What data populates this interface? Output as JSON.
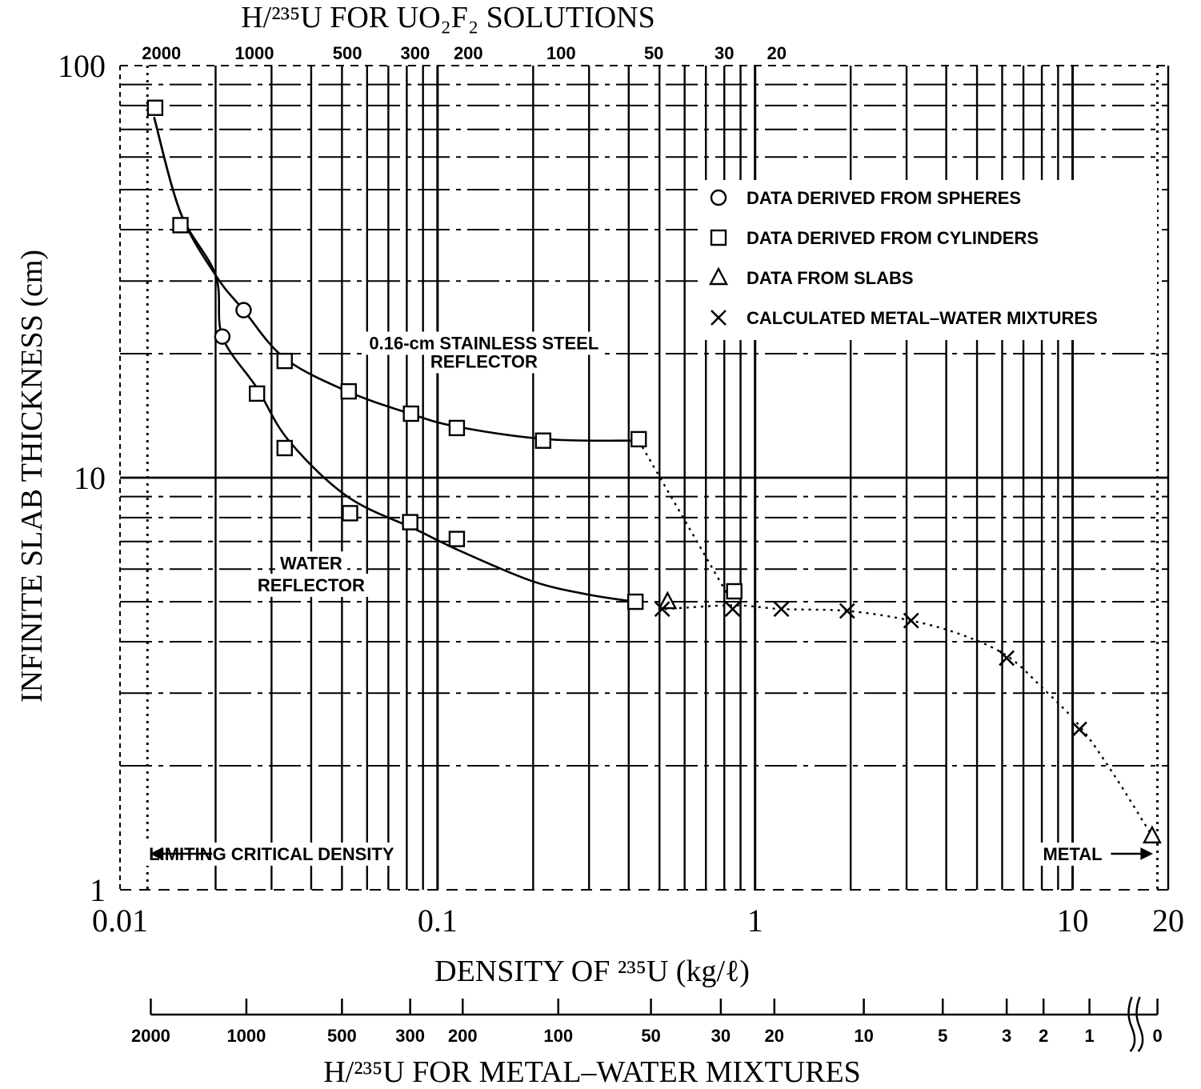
{
  "chart_data": {
    "type": "scatter",
    "title": "H/²³⁵U FOR UO₂F₂ SOLUTIONS",
    "xlabel": "DENSITY OF ²³⁵U (kg/ℓ)",
    "ylabel": "INFINITE SLAB THICKNESS (cm)",
    "bottom_axis_title": "H/²³⁵U FOR METAL–WATER MIXTURES",
    "x_scale": "log",
    "y_scale": "log",
    "xlim": [
      0.01,
      20
    ],
    "ylim": [
      1,
      100
    ],
    "grid": true,
    "legend_position": "top-right",
    "x_ticks": [
      {
        "v": 0.01,
        "label": "0.01"
      },
      {
        "v": 0.1,
        "label": "0.1"
      },
      {
        "v": 1,
        "label": "1"
      },
      {
        "v": 10,
        "label": "10"
      },
      {
        "v": 20,
        "label": "20"
      }
    ],
    "y_ticks": [
      {
        "v": 1,
        "label": "1"
      },
      {
        "v": 10,
        "label": "10"
      },
      {
        "v": 100,
        "label": "100"
      }
    ],
    "top_ticks": [
      {
        "label": "2000",
        "x": 0.0135
      },
      {
        "label": "1000",
        "x": 0.0265
      },
      {
        "label": "500",
        "x": 0.052
      },
      {
        "label": "300",
        "x": 0.085
      },
      {
        "label": "200",
        "x": 0.125
      },
      {
        "label": "100",
        "x": 0.245
      },
      {
        "label": "50",
        "x": 0.48
      },
      {
        "label": "30",
        "x": 0.8
      },
      {
        "label": "20",
        "x": 1.17
      }
    ],
    "bottom_ticks": [
      {
        "label": "2000",
        "x": 0.0125
      },
      {
        "label": "1000",
        "x": 0.025
      },
      {
        "label": "500",
        "x": 0.05
      },
      {
        "label": "300",
        "x": 0.082
      },
      {
        "label": "200",
        "x": 0.12
      },
      {
        "label": "100",
        "x": 0.24
      },
      {
        "label": "50",
        "x": 0.47
      },
      {
        "label": "30",
        "x": 0.78
      },
      {
        "label": "20",
        "x": 1.15
      },
      {
        "label": "10",
        "x": 2.2
      },
      {
        "label": "5",
        "x": 3.9
      },
      {
        "label": "3",
        "x": 6.2
      },
      {
        "label": "2",
        "x": 8.1
      },
      {
        "label": "1",
        "x": 11.3
      },
      {
        "label": "0",
        "x": 18.5
      }
    ],
    "series": [
      {
        "name": "DATA DERIVED FROM SPHERES",
        "marker": "circle",
        "points": [
          [
            0.0245,
            25.5
          ],
          [
            0.021,
            22.0
          ]
        ]
      },
      {
        "name": "DATA DERIVED FROM CYLINDERS",
        "marker": "square",
        "points": [
          [
            0.0129,
            79
          ],
          [
            0.0155,
            41
          ],
          [
            0.033,
            19.2
          ],
          [
            0.0525,
            16.2
          ],
          [
            0.0825,
            14.3
          ],
          [
            0.115,
            13.2
          ],
          [
            0.215,
            12.3
          ],
          [
            0.43,
            12.4
          ],
          [
            0.027,
            16.0
          ],
          [
            0.033,
            11.8
          ],
          [
            0.053,
            8.2
          ],
          [
            0.082,
            7.8
          ],
          [
            0.115,
            7.1
          ],
          [
            0.42,
            5.0
          ],
          [
            0.86,
            5.3
          ]
        ]
      },
      {
        "name": "DATA FROM SLABS",
        "marker": "triangle",
        "points": [
          [
            0.53,
            5.0
          ],
          [
            17.8,
            1.35
          ]
        ]
      },
      {
        "name": "CALCULATED METAL–WATER MIXTURES",
        "marker": "x",
        "points": [
          [
            0.51,
            4.8
          ],
          [
            0.85,
            4.8
          ],
          [
            1.21,
            4.8
          ],
          [
            1.95,
            4.75
          ],
          [
            3.1,
            4.5
          ],
          [
            6.2,
            3.65
          ],
          [
            10.5,
            2.45
          ]
        ]
      }
    ],
    "curves": [
      {
        "label": "0.16-cm STAINLESS STEEL REFLECTOR",
        "style": "solid",
        "points": [
          [
            0.0128,
            75
          ],
          [
            0.0155,
            44
          ],
          [
            0.02,
            31
          ],
          [
            0.0245,
            25.5
          ],
          [
            0.033,
            19.5
          ],
          [
            0.052,
            16.2
          ],
          [
            0.082,
            14.3
          ],
          [
            0.115,
            13.3
          ],
          [
            0.22,
            12.4
          ],
          [
            0.42,
            12.3
          ]
        ]
      },
      {
        "label": "WATER REFLECTOR",
        "style": "solid",
        "points": [
          [
            0.0128,
            75
          ],
          [
            0.0155,
            44
          ],
          [
            0.02,
            31
          ],
          [
            0.021,
            22
          ],
          [
            0.027,
            16.5
          ],
          [
            0.034,
            12.3
          ],
          [
            0.052,
            9.0
          ],
          [
            0.085,
            7.5
          ],
          [
            0.12,
            6.6
          ],
          [
            0.2,
            5.6
          ],
          [
            0.3,
            5.2
          ],
          [
            0.42,
            5.0
          ]
        ]
      },
      {
        "label": "",
        "style": "dotted",
        "points": [
          [
            0.52,
            4.8
          ],
          [
            0.85,
            4.9
          ],
          [
            1.21,
            4.8
          ],
          [
            1.95,
            4.75
          ],
          [
            3.1,
            4.5
          ],
          [
            4.5,
            4.15
          ],
          [
            6.2,
            3.7
          ],
          [
            8.0,
            3.1
          ],
          [
            10.5,
            2.5
          ],
          [
            13.5,
            1.9
          ],
          [
            17.8,
            1.35
          ]
        ]
      },
      {
        "label": "",
        "style": "dotted",
        "points": [
          [
            0.43,
            12.3
          ],
          [
            0.82,
            5.2
          ]
        ]
      }
    ],
    "annotations": [
      {
        "text": "0.16-cm STAINLESS STEEL",
        "x": 0.14,
        "y": 20.5
      },
      {
        "text": "REFLECTOR",
        "x": 0.14,
        "y": 18.5
      },
      {
        "text": "WATER",
        "x": 0.04,
        "y": 6.0
      },
      {
        "text": "REFLECTOR",
        "x": 0.04,
        "y": 5.3
      },
      {
        "text": "LIMITING CRITICAL DENSITY",
        "x": 0.03,
        "y": 1.18
      },
      {
        "text": "METAL",
        "x": 10.0,
        "y": 1.18
      }
    ],
    "limit_lines": [
      0.0122,
      18.5
    ]
  }
}
